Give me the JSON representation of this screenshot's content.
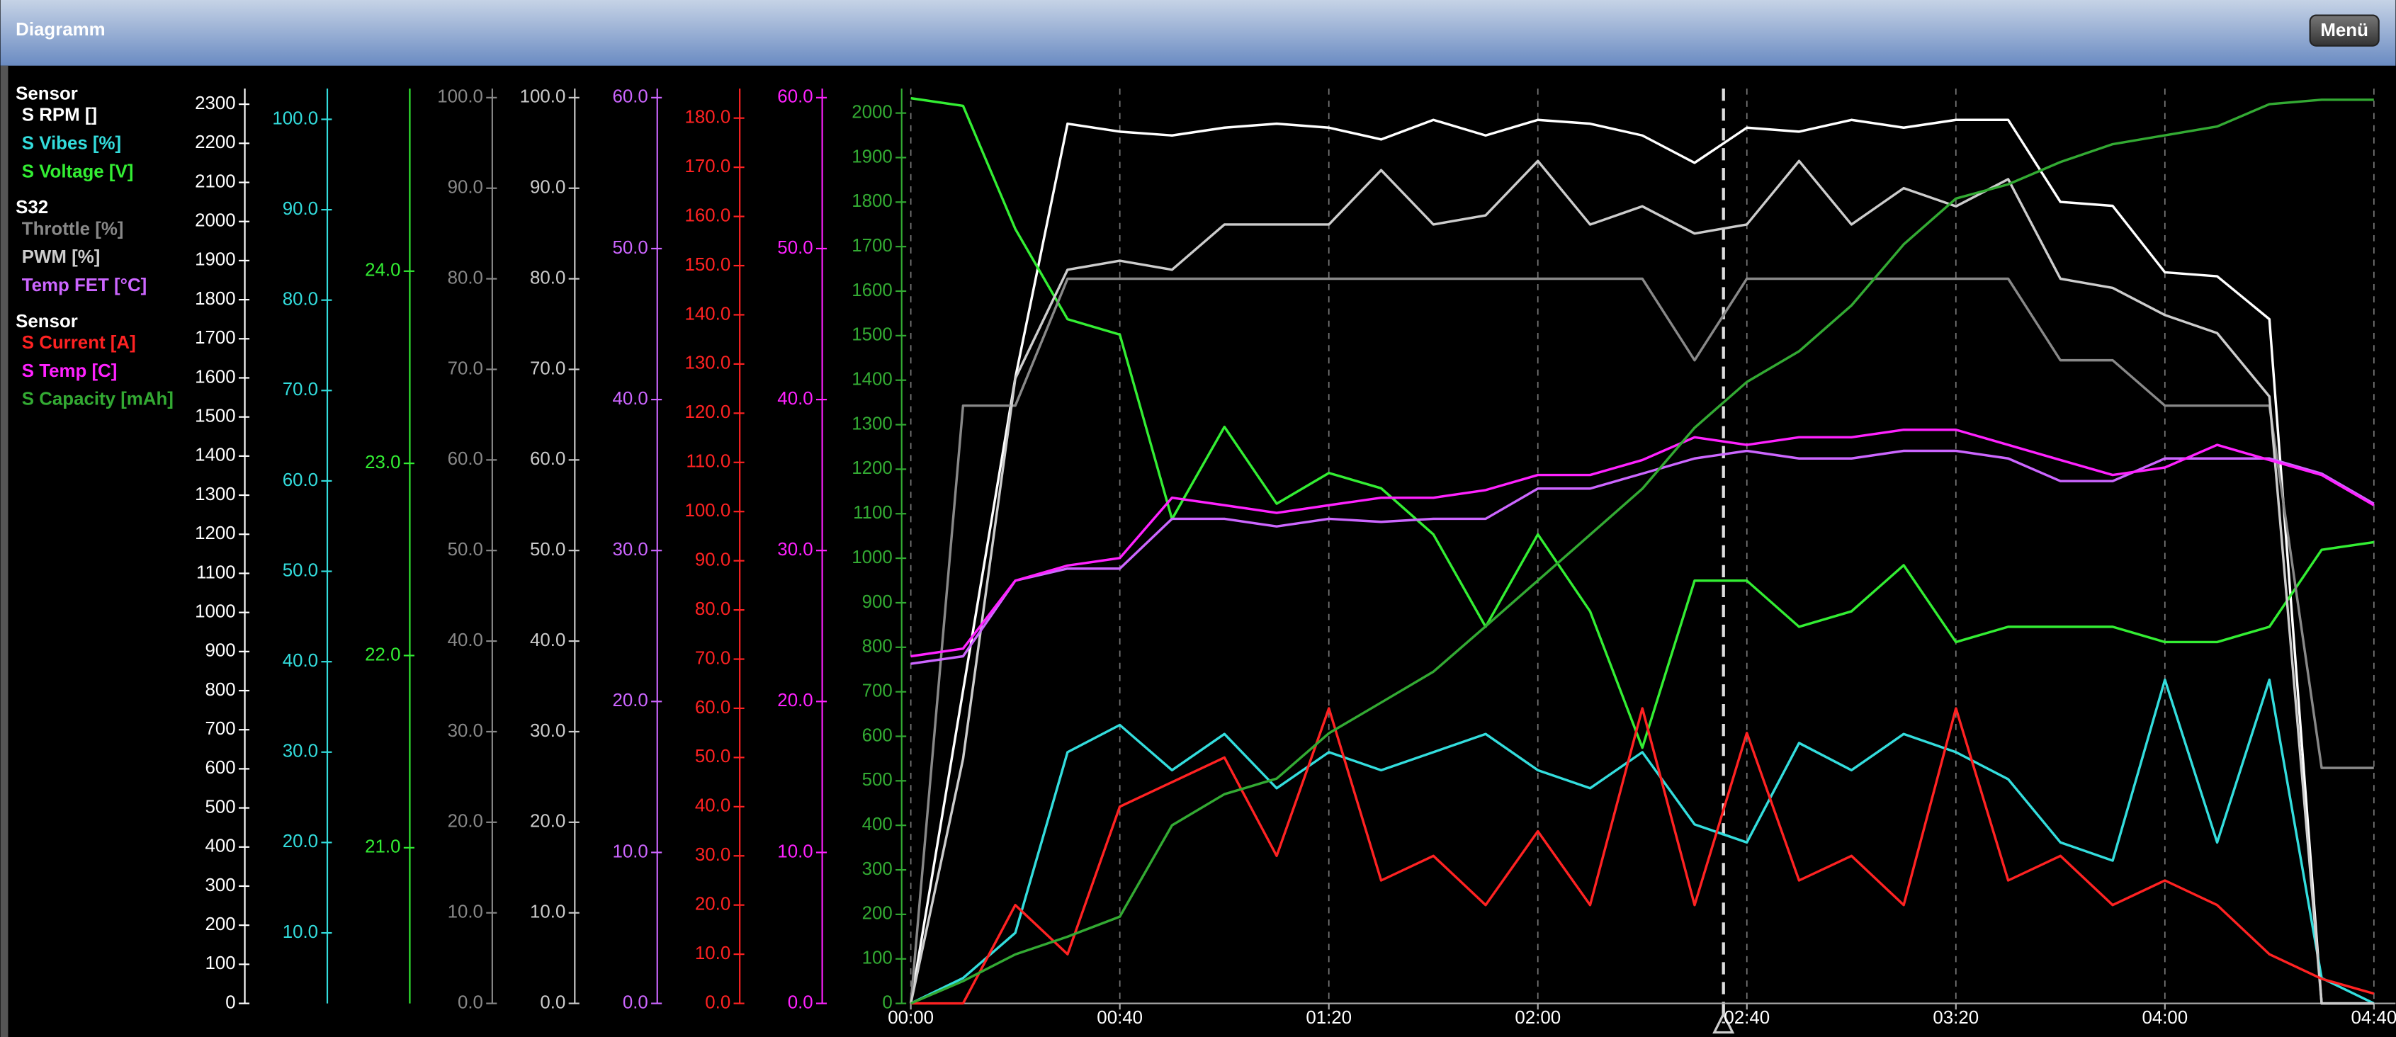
{
  "header": {
    "title": "Diagramm",
    "menu_button": "Menü"
  },
  "chart_data": {
    "type": "line",
    "x": [
      0,
      10,
      20,
      30,
      40,
      50,
      60,
      70,
      80,
      90,
      100,
      110,
      120,
      130,
      140,
      150,
      160,
      170,
      180,
      190,
      200,
      210,
      220,
      230,
      240,
      250,
      260,
      270,
      280
    ],
    "xlim": [
      0,
      284
    ],
    "xticks": [
      {
        "value": 0,
        "label": "00:00"
      },
      {
        "value": 40,
        "label": "00:40"
      },
      {
        "value": 80,
        "label": "01:20"
      },
      {
        "value": 120,
        "label": "02:00"
      },
      {
        "value": 160,
        "label": "02:40"
      },
      {
        "value": 200,
        "label": "03:20"
      },
      {
        "value": 240,
        "label": "04:00"
      },
      {
        "value": 280,
        "label": "04:40"
      }
    ],
    "grid": true,
    "groups": [
      {
        "title": "Sensor",
        "series": [
          {
            "name": "S RPM []",
            "color": "#ffffff",
            "ylim": [
              0,
              2340
            ],
            "yticks": [
              0,
              100,
              200,
              300,
              400,
              500,
              600,
              700,
              800,
              900,
              1000,
              1100,
              1200,
              1300,
              1400,
              1500,
              1600,
              1700,
              1800,
              1900,
              2000,
              2100,
              2200,
              2300
            ],
            "values": [
              0,
              800,
              1600,
              2250,
              2230,
              2220,
              2240,
              2250,
              2240,
              2210,
              2260,
              2220,
              2260,
              2250,
              2220,
              2150,
              2240,
              2230,
              2260,
              2240,
              2260,
              2260,
              2050,
              2040,
              1870,
              1860,
              1750,
              0,
              0
            ]
          },
          {
            "name": "S Vibes [%]",
            "color": "#33dddd",
            "ylim": [
              2.2,
              103.4
            ],
            "yticks": [
              {
                "value": 10,
                "label": "10.0"
              },
              {
                "value": 20,
                "label": "20.0"
              },
              {
                "value": 30,
                "label": "30.0"
              },
              {
                "value": 40,
                "label": "40.0"
              },
              {
                "value": 50,
                "label": "50.0"
              },
              {
                "value": 60,
                "label": "60.0"
              },
              {
                "value": 70,
                "label": "70.0"
              },
              {
                "value": 80,
                "label": "80.0"
              },
              {
                "value": 90,
                "label": "90.0"
              },
              {
                "value": 100,
                "label": "100.0"
              }
            ],
            "values": [
              2.2,
              5,
              10,
              30,
              33,
              28,
              32,
              26,
              30,
              28,
              30,
              32,
              28,
              26,
              30,
              22,
              20,
              31,
              28,
              32,
              30,
              27,
              20,
              18,
              38,
              20,
              38,
              5,
              2.2
            ]
          },
          {
            "name": "S Voltage [V]",
            "color": "#33ee33",
            "ylim": [
              20.19,
              24.95
            ],
            "yticks": [
              {
                "value": 21,
                "label": "21.0"
              },
              {
                "value": 22,
                "label": "22.0"
              },
              {
                "value": 23,
                "label": "23.0"
              },
              {
                "value": 24,
                "label": "24.0"
              }
            ],
            "values": [
              24.9,
              24.86,
              24.22,
              23.75,
              23.67,
              22.71,
              23.19,
              22.79,
              22.95,
              22.87,
              22.63,
              22.15,
              22.63,
              22.23,
              21.52,
              22.39,
              22.39,
              22.15,
              22.23,
              22.47,
              22.07,
              22.15,
              22.15,
              22.15,
              22.07,
              22.07,
              22.15,
              22.55,
              22.59
            ]
          }
        ]
      },
      {
        "title": "S32",
        "series": [
          {
            "name": "Throttle [%]",
            "color": "#888888",
            "ylim": [
              0,
              101
            ],
            "yticks": [
              {
                "value": 0,
                "label": "0.0"
              },
              {
                "value": 10,
                "label": "10.0"
              },
              {
                "value": 20,
                "label": "20.0"
              },
              {
                "value": 30,
                "label": "30.0"
              },
              {
                "value": 40,
                "label": "40.0"
              },
              {
                "value": 50,
                "label": "50.0"
              },
              {
                "value": 60,
                "label": "60.0"
              },
              {
                "value": 70,
                "label": "70.0"
              },
              {
                "value": 80,
                "label": "80.0"
              },
              {
                "value": 90,
                "label": "90.0"
              },
              {
                "value": 100,
                "label": "100.0"
              }
            ],
            "values": [
              0,
              66,
              66,
              80,
              80,
              80,
              80,
              80,
              80,
              80,
              80,
              80,
              80,
              80,
              80,
              71,
              80,
              80,
              80,
              80,
              80,
              80,
              71,
              71,
              66,
              66,
              66,
              26,
              26
            ]
          },
          {
            "name": "PWM [%]",
            "color": "#cccccc",
            "ylim": [
              0,
              101
            ],
            "yticks": [
              {
                "value": 0,
                "label": "0.0"
              },
              {
                "value": 10,
                "label": "10.0"
              },
              {
                "value": 20,
                "label": "20.0"
              },
              {
                "value": 30,
                "label": "30.0"
              },
              {
                "value": 40,
                "label": "40.0"
              },
              {
                "value": 50,
                "label": "50.0"
              },
              {
                "value": 60,
                "label": "60.0"
              },
              {
                "value": 70,
                "label": "70.0"
              },
              {
                "value": 80,
                "label": "80.0"
              },
              {
                "value": 90,
                "label": "90.0"
              },
              {
                "value": 100,
                "label": "100.0"
              }
            ],
            "values": [
              0,
              27,
              69,
              81,
              82,
              81,
              86,
              86,
              86,
              92,
              86,
              87,
              93,
              86,
              88,
              85,
              86,
              93,
              86,
              90,
              88,
              91,
              80,
              79,
              76,
              74,
              67,
              0,
              0
            ]
          },
          {
            "name": "Temp FET [°C]",
            "color": "#cc66ff",
            "ylim": [
              0,
              60.6
            ],
            "yticks": [
              {
                "value": 0,
                "label": "0.0"
              },
              {
                "value": 10,
                "label": "10.0"
              },
              {
                "value": 20,
                "label": "20.0"
              },
              {
                "value": 30,
                "label": "30.0"
              },
              {
                "value": 40,
                "label": "40.0"
              },
              {
                "value": 50,
                "label": "50.0"
              },
              {
                "value": 60,
                "label": "60.0"
              }
            ],
            "values": [
              22.5,
              23,
              28,
              28.8,
              28.8,
              32.1,
              32.1,
              31.6,
              32.1,
              31.9,
              32.1,
              32.1,
              34.1,
              34.1,
              35.1,
              36.1,
              36.6,
              36.1,
              36.1,
              36.6,
              36.6,
              36.1,
              34.6,
              34.6,
              36.1,
              36.1,
              36.1,
              35.1,
              33.1
            ]
          }
        ]
      },
      {
        "title": "Sensor",
        "series": [
          {
            "name": "S Current [A]",
            "color": "#ff2222",
            "ylim": [
              0,
              186
            ],
            "yticks": [
              {
                "value": 0,
                "label": "0.0"
              },
              {
                "value": 10,
                "label": "10.0"
              },
              {
                "value": 20,
                "label": "20.0"
              },
              {
                "value": 30,
                "label": "30.0"
              },
              {
                "value": 40,
                "label": "40.0"
              },
              {
                "value": 50,
                "label": "50.0"
              },
              {
                "value": 60,
                "label": "60.0"
              },
              {
                "value": 70,
                "label": "70.0"
              },
              {
                "value": 80,
                "label": "80.0"
              },
              {
                "value": 90,
                "label": "90.0"
              },
              {
                "value": 100,
                "label": "100.0"
              },
              {
                "value": 110,
                "label": "110.0"
              },
              {
                "value": 120,
                "label": "120.0"
              },
              {
                "value": 130,
                "label": "130.0"
              },
              {
                "value": 140,
                "label": "140.0"
              },
              {
                "value": 150,
                "label": "150.0"
              },
              {
                "value": 160,
                "label": "160.0"
              },
              {
                "value": 170,
                "label": "170.0"
              },
              {
                "value": 180,
                "label": "180.0"
              }
            ],
            "values": [
              0,
              0,
              20,
              10,
              40,
              45,
              50,
              30,
              60,
              25,
              30,
              20,
              35,
              20,
              60,
              20,
              55,
              25,
              30,
              20,
              60,
              25,
              30,
              20,
              25,
              20,
              10,
              5,
              2
            ]
          },
          {
            "name": "S Temp [C]",
            "color": "#ff22ff",
            "ylim": [
              0,
              60.6
            ],
            "yticks": [
              {
                "value": 0,
                "label": "0.0"
              },
              {
                "value": 10,
                "label": "10.0"
              },
              {
                "value": 20,
                "label": "20.0"
              },
              {
                "value": 30,
                "label": "30.0"
              },
              {
                "value": 40,
                "label": "40.0"
              },
              {
                "value": 50,
                "label": "50.0"
              },
              {
                "value": 60,
                "label": "60.0"
              }
            ],
            "values": [
              23,
              23.5,
              28,
              29,
              29.5,
              33.5,
              33,
              32.5,
              33,
              33.5,
              33.5,
              34,
              35,
              35,
              36,
              37.5,
              37,
              37.5,
              37.5,
              38,
              38,
              37,
              36,
              35,
              35.5,
              37,
              36,
              35,
              33
            ]
          },
          {
            "name": "S Capacity [mAh]",
            "color": "#33aa33",
            "ylim": [
              0,
              2055
            ],
            "yticks": [
              0,
              100,
              200,
              300,
              400,
              500,
              600,
              700,
              800,
              900,
              1000,
              1100,
              1200,
              1300,
              1400,
              1500,
              1600,
              1700,
              1800,
              1900,
              2000
            ],
            "values": [
              0,
              50,
              110,
              150,
              195,
              400,
              470,
              505,
              607,
              676,
              745,
              847,
              950,
              1053,
              1156,
              1293,
              1396,
              1465,
              1568,
              1705,
              1808,
              1840,
              1890,
              1930,
              1950,
              1970,
              2020,
              2030,
              2030
            ]
          }
        ]
      }
    ]
  }
}
